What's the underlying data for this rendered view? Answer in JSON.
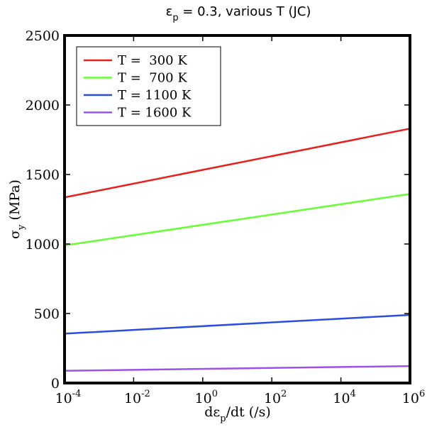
{
  "chart_data": {
    "type": "line",
    "title": {
      "sym": "ε",
      "sub": "p",
      "rest": " = 0.3, various T (JC)"
    },
    "xlabel": {
      "pre": "dε",
      "sub": "p",
      "post": "/dt (/s)"
    },
    "ylabel": {
      "sym": "σ",
      "sub": "y",
      "post": " (MPa)"
    },
    "xscale": "log",
    "xlim": [
      0.0001,
      1000000
    ],
    "ylim": [
      0,
      2500
    ],
    "x_ticks": [
      {
        "base": "10",
        "exp": "-4"
      },
      {
        "base": "10",
        "exp": "-2"
      },
      {
        "base": "10",
        "exp": "0"
      },
      {
        "base": "10",
        "exp": "2"
      },
      {
        "base": "10",
        "exp": "4"
      },
      {
        "base": "10",
        "exp": "6"
      }
    ],
    "x_tick_values": [
      -4,
      -2,
      0,
      2,
      4,
      6
    ],
    "y_ticks": [
      "0",
      "500",
      "1000",
      "1500",
      "2000",
      "2500"
    ],
    "y_tick_values": [
      0,
      500,
      1000,
      1500,
      2000,
      2500
    ],
    "legend_position": "top-left",
    "series": [
      {
        "name": "T =  300 K",
        "color": "#e8201c",
        "x": [
          0.0001,
          1000000
        ],
        "y": [
          1335,
          1830
        ]
      },
      {
        "name": "T =  700 K",
        "color": "#66ff33",
        "x": [
          0.0001,
          1000000
        ],
        "y": [
          990,
          1360
        ]
      },
      {
        "name": "T = 1100 K",
        "color": "#2b4de0",
        "x": [
          0.0001,
          1000000
        ],
        "y": [
          355,
          490
        ]
      },
      {
        "name": "T = 1600 K",
        "color": "#9b52ea",
        "x": [
          0.0001,
          1000000
        ],
        "y": [
          88,
          122
        ]
      }
    ]
  }
}
